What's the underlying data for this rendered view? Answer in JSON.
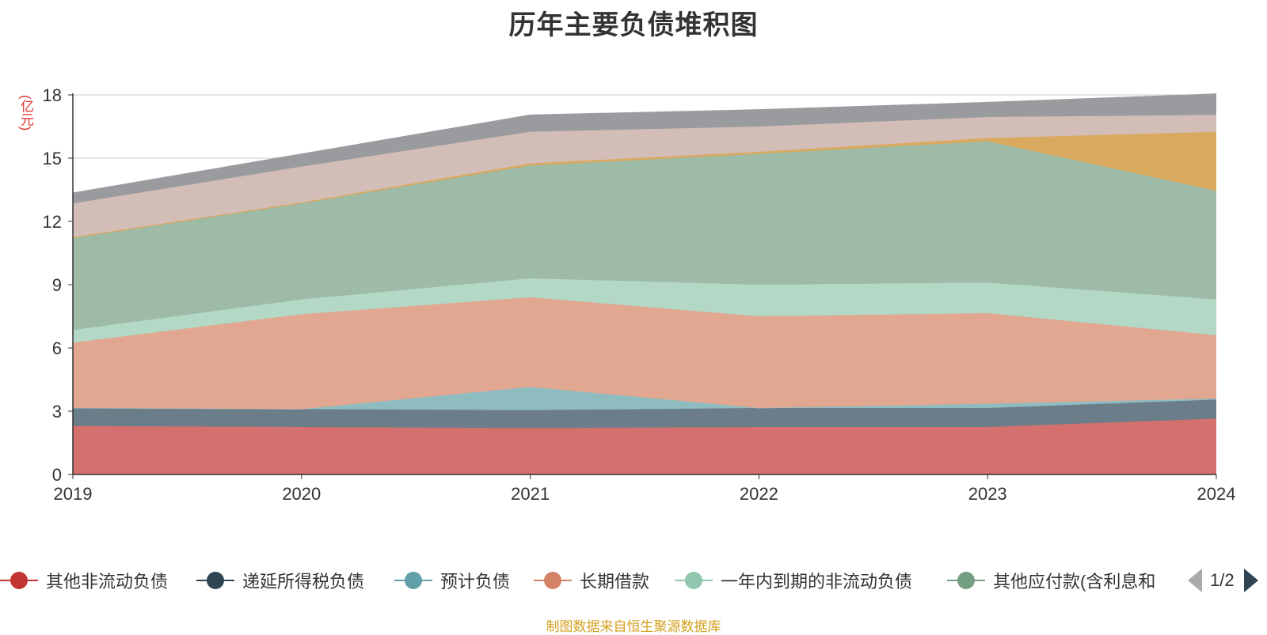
{
  "title": "历年主要负债堆积图",
  "unit_label": "(亿元)",
  "footer": "制图数据来自恒生聚源数据库",
  "pager": {
    "text": "1/2"
  },
  "chart_data": {
    "type": "area",
    "stacked": true,
    "title": "历年主要负债堆积图",
    "ylabel": "(亿元)",
    "categories": [
      "2019",
      "2020",
      "2021",
      "2022",
      "2023",
      "2024"
    ],
    "ylim": [
      0,
      18
    ],
    "yticks": [
      0,
      3,
      6,
      9,
      12,
      15,
      18
    ],
    "grid": true,
    "legend_position": "bottom",
    "series": [
      {
        "name": "其他非流动负债",
        "color": "#c23531",
        "fill": "#d4706d",
        "values": [
          2.3,
          2.25,
          2.2,
          2.25,
          2.25,
          2.65
        ]
      },
      {
        "name": "递延所得税负债",
        "color": "#2f4554",
        "fill": "#6b7d89",
        "values": [
          0.85,
          0.85,
          0.85,
          0.9,
          0.9,
          0.9
        ]
      },
      {
        "name": "预计负债",
        "color": "#61a0a8",
        "fill": "#8fbcc1",
        "values": [
          0.0,
          0.0,
          1.1,
          0.0,
          0.2,
          0.05
        ]
      },
      {
        "name": "长期借款",
        "color": "#d48265",
        "fill": "#e1a791",
        "values": [
          3.1,
          4.5,
          4.25,
          4.35,
          4.3,
          3.0
        ]
      },
      {
        "name": "一年内到期的非流动负债",
        "color": "#91c7ae",
        "fill": "#b3d8c6",
        "values": [
          0.6,
          0.7,
          0.9,
          1.5,
          1.45,
          1.7
        ]
      },
      {
        "name": "其他应付款(含利息和",
        "color": "#749f83",
        "fill": "#9dbba7",
        "values": [
          4.35,
          4.55,
          5.35,
          6.2,
          6.7,
          5.15
        ]
      },
      {
        "name": "",
        "color": "#ca8622",
        "fill": "#d9a95f",
        "values": [
          0.05,
          0.05,
          0.1,
          0.1,
          0.15,
          2.8
        ]
      },
      {
        "name": "",
        "color": "#bda29a",
        "fill": "#d3bdb7",
        "values": [
          1.6,
          1.7,
          1.5,
          1.2,
          1.0,
          0.8
        ]
      },
      {
        "name": "",
        "color": "#6e7074",
        "fill": "#9a9b9e",
        "values": [
          0.5,
          0.6,
          0.8,
          0.8,
          0.7,
          1.0
        ]
      }
    ]
  }
}
